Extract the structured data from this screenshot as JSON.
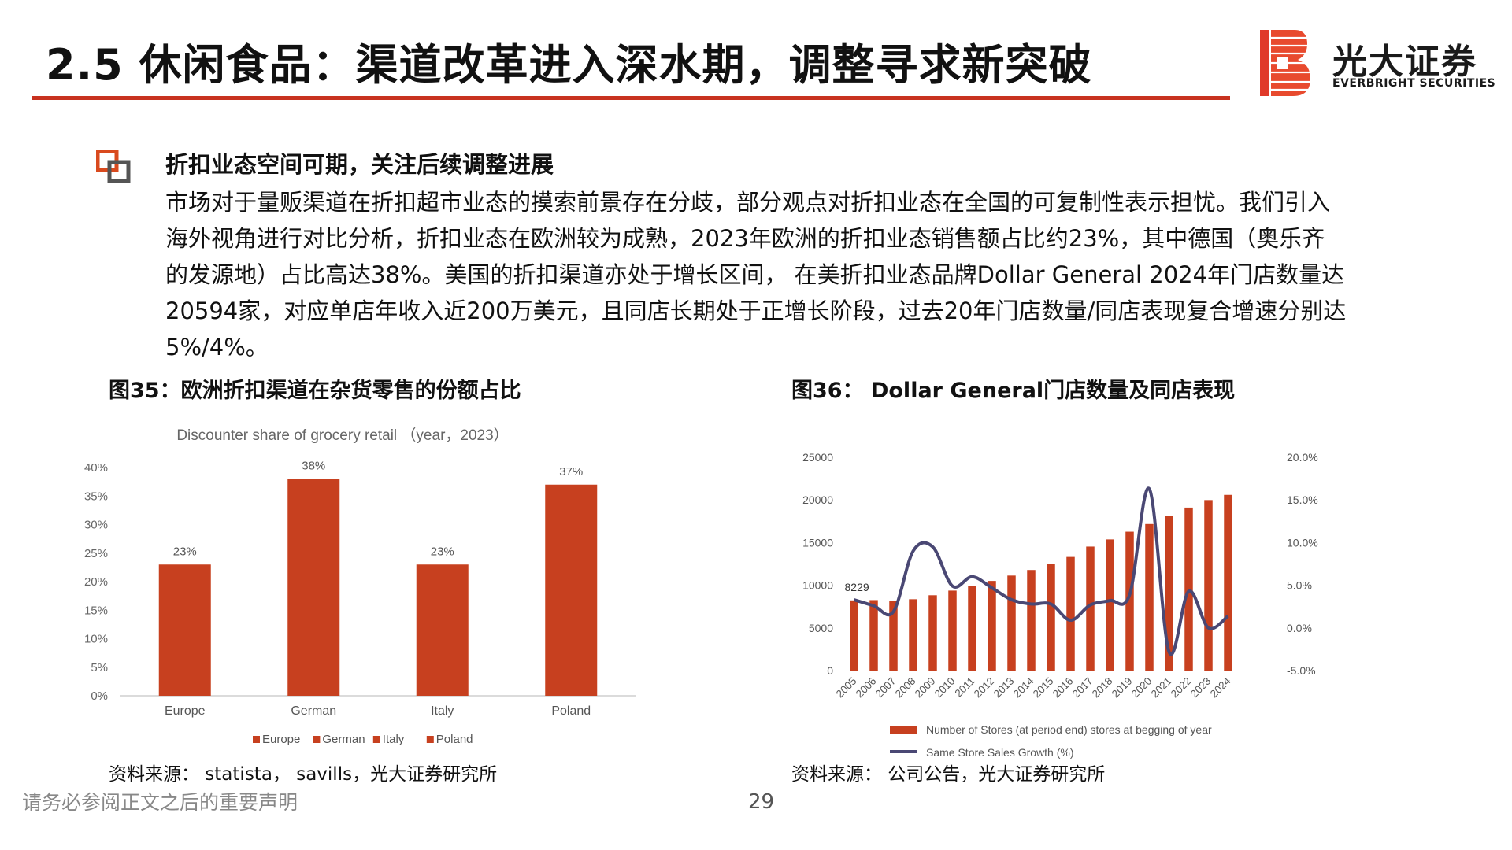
{
  "header": {
    "title": "2.5 休闲食品：渠道改革进入深水期，调整寻求新突破"
  },
  "logo": {
    "cn": "光大证券",
    "en": "EVERBRIGHT SECURITIES"
  },
  "colors": {
    "accent": "#c8321f",
    "bar": "#c7401f",
    "line": "#4a4874"
  },
  "section": {
    "heading": "折扣业态空间可期，关注后续调整进展",
    "body_lines": [
      "市场对于量贩渠道在折扣超市业态的摸索前景存在分歧，部分观点对折扣业态在全国的可复制性表示担忧。我们引入",
      "海外视角进行对比分析，折扣业态在欧洲较为成熟，2023年欧洲的折扣业态销售额占比约23%，其中德国（奥乐齐",
      "的发源地）占比高达38%。美国的折扣渠道亦处于增长区间， 在美折扣业态品牌Dollar General 2024年门店数量达",
      "20594家，对应单店年收入近200万美元，且同店长期处于正增长阶段，过去20年门店数量/同店表现复合增速分别达",
      "5%/4%。"
    ]
  },
  "figure35": {
    "label": "图35：欧洲折扣渠道在杂货零售的份额占比",
    "source": "资料来源： statista， savills，光大证券研究所"
  },
  "figure36": {
    "label": "图36： Dollar General门店数量及同店表现",
    "source": "资料来源： 公司公告，光大证券研究所"
  },
  "footer": {
    "note": "请务必参阅正文之后的重要声明",
    "page": "29"
  },
  "chart_data": [
    {
      "type": "bar",
      "title": "Discounter share of grocery retail （year，2023）",
      "categories": [
        "Europe",
        "German",
        "Italy",
        "Poland"
      ],
      "values": [
        23,
        38,
        23,
        37
      ],
      "value_labels": [
        "23%",
        "38%",
        "23%",
        "37%"
      ],
      "ylim": [
        0,
        40
      ],
      "yticks": [
        "0%",
        "5%",
        "10%",
        "15%",
        "20%",
        "25%",
        "30%",
        "35%",
        "40%"
      ],
      "legend": [
        "Europe",
        "German",
        "Italy",
        "Poland"
      ],
      "legend_position": "bottom",
      "grid": false
    },
    {
      "type": "bar+line",
      "x": [
        "2005",
        "2006",
        "2007",
        "2008",
        "2009",
        "2010",
        "2011",
        "2012",
        "2013",
        "2014",
        "2015",
        "2016",
        "2017",
        "2018",
        "2019",
        "2020",
        "2021",
        "2022",
        "2023",
        "2024"
      ],
      "series": [
        {
          "name": "Number of Stores (at period end) stores at begging of year",
          "type": "bar",
          "axis": "left",
          "values": [
            8229,
            8260,
            8194,
            8362,
            8828,
            9372,
            9937,
            10506,
            11132,
            11789,
            12483,
            13320,
            14534,
            15370,
            16278,
            17177,
            18130,
            19104,
            19986,
            20594
          ]
        },
        {
          "name": "Same Store Sales Growth (%)",
          "type": "line",
          "axis": "right",
          "values": [
            3.3,
            2.6,
            1.9,
            9.0,
            9.5,
            4.9,
            6.0,
            4.7,
            3.3,
            2.8,
            2.8,
            0.9,
            2.7,
            3.2,
            3.9,
            16.3,
            -2.8,
            4.3,
            0.0,
            1.4
          ]
        }
      ],
      "annotation": "8229",
      "yleft": {
        "lim": [
          0,
          25000
        ],
        "ticks": [
          "0",
          "5000",
          "10000",
          "15000",
          "20000",
          "25000"
        ]
      },
      "yright": {
        "lim": [
          -5,
          20
        ],
        "ticks": [
          "-5.0%",
          "0.0%",
          "5.0%",
          "10.0%",
          "15.0%",
          "20.0%"
        ]
      },
      "legend_position": "bottom",
      "grid": false
    }
  ]
}
